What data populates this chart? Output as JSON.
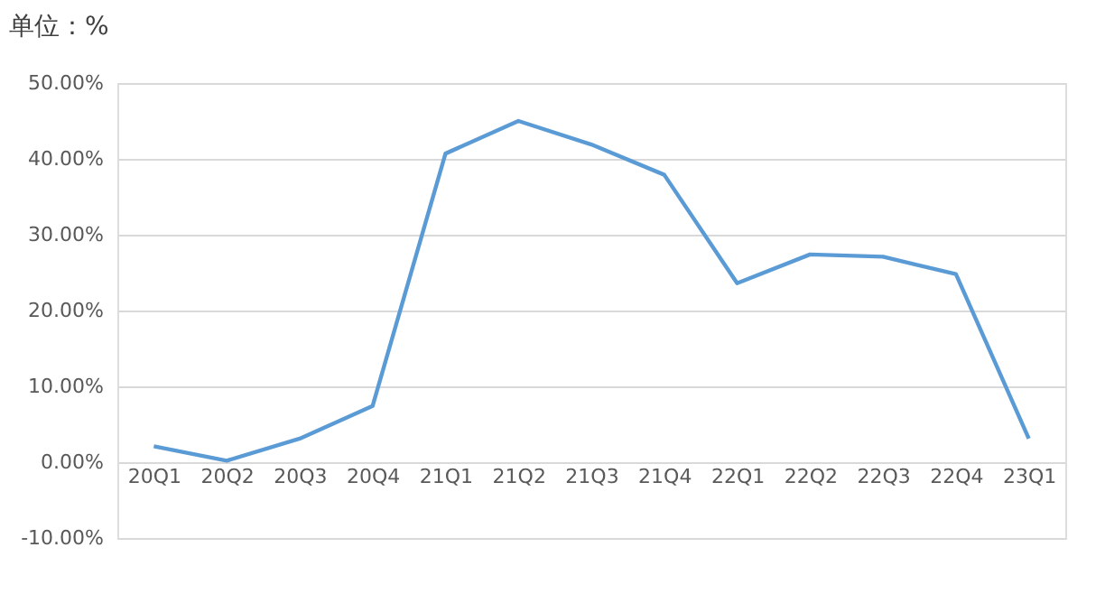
{
  "chart_data": {
    "type": "line",
    "title": "单位：%",
    "categories": [
      "20Q1",
      "20Q2",
      "20Q3",
      "20Q4",
      "21Q1",
      "21Q2",
      "21Q3",
      "21Q4",
      "22Q1",
      "22Q2",
      "22Q3",
      "22Q4",
      "23Q1"
    ],
    "series": [
      {
        "color": "#5b9bd5",
        "values": [
          2.1,
          0.2,
          3.1,
          7.4,
          40.7,
          45.0,
          41.9,
          37.9,
          23.6,
          27.4,
          27.1,
          24.8,
          3.1
        ]
      }
    ],
    "ylim": [
      -10,
      50
    ],
    "yticks": [
      {
        "value": -10,
        "label": "-10.00%"
      },
      {
        "value": 0,
        "label": "0.00%"
      },
      {
        "value": 10,
        "label": "10.00%"
      },
      {
        "value": 20,
        "label": "20.00%"
      },
      {
        "value": 30,
        "label": "30.00%"
      },
      {
        "value": 40,
        "label": "40.00%"
      },
      {
        "value": 50,
        "label": "50.00%"
      }
    ],
    "grid": "y",
    "legend": false,
    "marker": "none",
    "line_style": "solid"
  }
}
